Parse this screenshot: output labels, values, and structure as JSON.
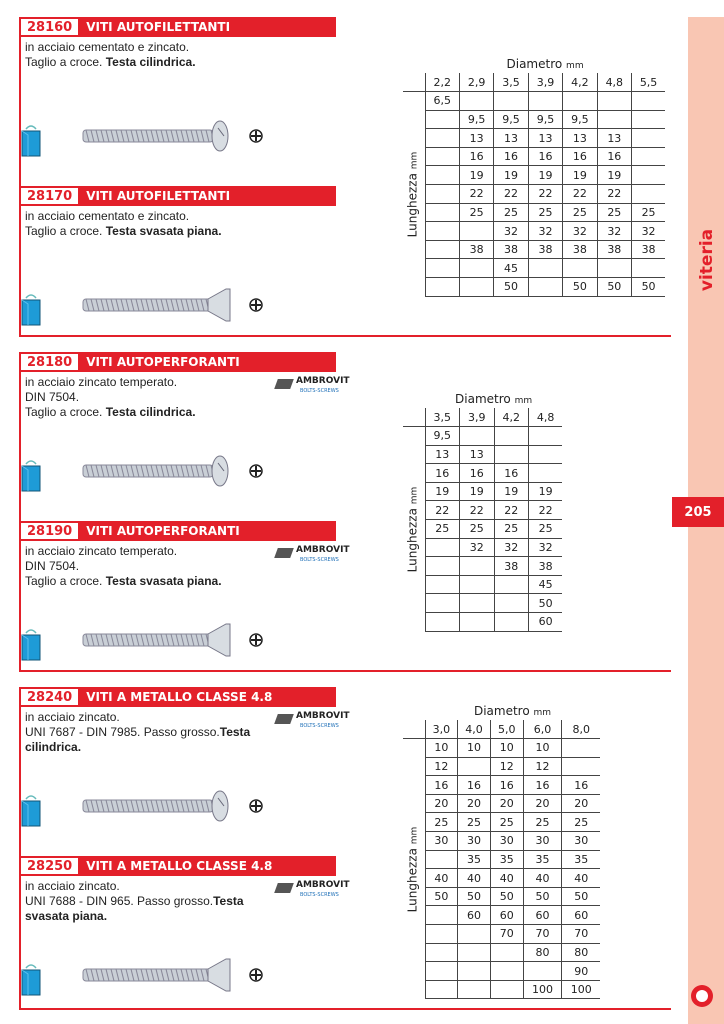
{
  "sections": [
    {
      "products": [
        {
          "code": "28160",
          "title": "VITI AUTOFILETTANTI",
          "desc": [
            "in acciaio cementato e zincato.",
            "Taglio a croce. "
          ],
          "bold": "Testa cilindrica.",
          "head": "pan",
          "brand": false
        },
        {
          "code": "28170",
          "title": "VITI AUTOFILETTANTI",
          "desc": [
            "in acciaio cementato e zincato.",
            "Taglio a croce. "
          ],
          "bold": "Testa svasata piana.",
          "head": "flat",
          "brand": false
        }
      ],
      "table": {
        "diam_label": "Diametro",
        "unit": "mm",
        "len_label": "Lunghezza",
        "columns": [
          "2,2",
          "2,9",
          "3,5",
          "3,9",
          "4,2",
          "4,8",
          "5,5"
        ],
        "rows": [
          [
            "6,5",
            "",
            "",
            "",
            "",
            "",
            ""
          ],
          [
            "",
            "9,5",
            "9,5",
            "9,5",
            "9,5",
            "",
            ""
          ],
          [
            "",
            "13",
            "13",
            "13",
            "13",
            "13",
            ""
          ],
          [
            "",
            "16",
            "16",
            "16",
            "16",
            "16",
            ""
          ],
          [
            "",
            "19",
            "19",
            "19",
            "19",
            "19",
            ""
          ],
          [
            "",
            "22",
            "22",
            "22",
            "22",
            "22",
            ""
          ],
          [
            "",
            "25",
            "25",
            "25",
            "25",
            "25",
            "25"
          ],
          [
            "",
            "",
            "32",
            "32",
            "32",
            "32",
            "32"
          ],
          [
            "",
            "38",
            "38",
            "38",
            "38",
            "38",
            "38"
          ],
          [
            "",
            "",
            "45",
            "",
            "",
            "",
            ""
          ],
          [
            "",
            "",
            "50",
            "",
            "50",
            "50",
            "50"
          ]
        ]
      }
    },
    {
      "products": [
        {
          "code": "28180",
          "title": "VITI AUTOPERFORANTI",
          "desc": [
            "in acciaio zincato temperato.",
            "DIN 7504.",
            "Taglio a croce. "
          ],
          "bold": "Testa cilindrica.",
          "head": "pan",
          "brand": true
        },
        {
          "code": "28190",
          "title": "VITI AUTOPERFORANTI",
          "desc": [
            "in acciaio zincato temperato.",
            "DIN 7504.",
            "Taglio a croce. "
          ],
          "bold": "Testa svasata piana.",
          "head": "flat",
          "brand": true
        }
      ],
      "table": {
        "diam_label": "Diametro",
        "unit": "mm",
        "len_label": "Lunghezza",
        "columns": [
          "3,5",
          "3,9",
          "4,2",
          "4,8"
        ],
        "rows": [
          [
            "9,5",
            "",
            "",
            ""
          ],
          [
            "13",
            "13",
            "",
            ""
          ],
          [
            "16",
            "16",
            "16",
            ""
          ],
          [
            "19",
            "19",
            "19",
            "19"
          ],
          [
            "22",
            "22",
            "22",
            "22"
          ],
          [
            "25",
            "25",
            "25",
            "25"
          ],
          [
            "",
            "32",
            "32",
            "32"
          ],
          [
            "",
            "",
            "38",
            "38"
          ],
          [
            "",
            "",
            "",
            "45"
          ],
          [
            "",
            "",
            "",
            "50"
          ],
          [
            "",
            "",
            "",
            "60"
          ]
        ]
      }
    },
    {
      "products": [
        {
          "code": "28240",
          "title": "VITI A METALLO CLASSE 4.8",
          "desc": [
            "in acciaio zincato.",
            "UNI 7687 - DIN 7985. Passo grosso."
          ],
          "bold": "Testa cilindrica.",
          "head": "pan",
          "brand": true
        },
        {
          "code": "28250",
          "title": "VITI A METALLO CLASSE 4.8",
          "desc": [
            "in acciaio zincato.",
            "UNI 7688 - DIN 965. Passo grosso."
          ],
          "bold": "Testa svasata piana.",
          "head": "flat",
          "brand": true
        }
      ],
      "table": {
        "diam_label": "Diametro",
        "unit": "mm",
        "len_label": "Lunghezza",
        "columns": [
          "3,0",
          "4,0",
          "5,0",
          "6,0",
          "8,0"
        ],
        "rows": [
          [
            "10",
            "10",
            "10",
            "10",
            ""
          ],
          [
            "12",
            "",
            "12",
            "12",
            ""
          ],
          [
            "16",
            "16",
            "16",
            "16",
            "16"
          ],
          [
            "20",
            "20",
            "20",
            "20",
            "20"
          ],
          [
            "25",
            "25",
            "25",
            "25",
            "25"
          ],
          [
            "30",
            "30",
            "30",
            "30",
            "30"
          ],
          [
            "",
            "35",
            "35",
            "35",
            "35"
          ],
          [
            "40",
            "40",
            "40",
            "40",
            "40"
          ],
          [
            "50",
            "50",
            "50",
            "50",
            "50"
          ],
          [
            "",
            "60",
            "60",
            "60",
            "60"
          ],
          [
            "",
            "",
            "70",
            "70",
            "70"
          ],
          [
            "",
            "",
            "",
            "80",
            "80"
          ],
          [
            "",
            "",
            "",
            "",
            "90"
          ],
          [
            "",
            "",
            "",
            "100",
            "100"
          ]
        ]
      }
    }
  ],
  "brand": {
    "name": "AMBROVIT",
    "sub": "BOLTS-SCREWS"
  },
  "sidebar": {
    "category": "viteria",
    "page": "205"
  },
  "colors": {
    "accent": "#e3202a",
    "sidebar": "#f9c6b3",
    "bag": "#1e9bd7"
  }
}
